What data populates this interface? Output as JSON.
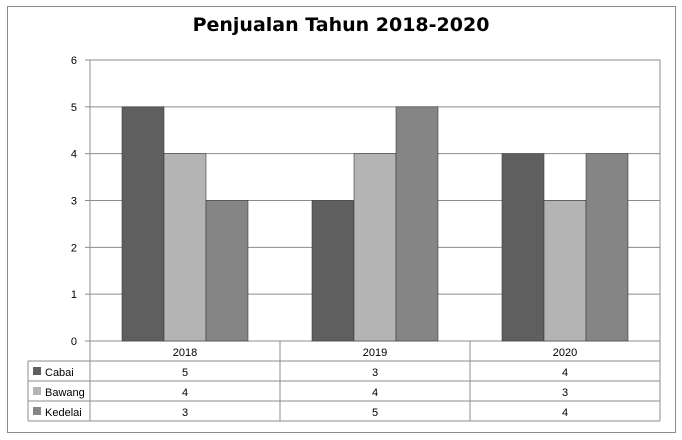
{
  "chart_data": {
    "type": "bar",
    "title": "Penjualan Tahun 2018-2020",
    "categories": [
      "2018",
      "2019",
      "2020"
    ],
    "series": [
      {
        "name": "Cabai",
        "values": [
          5,
          3,
          4
        ],
        "color": "#5f5f5f"
      },
      {
        "name": "Bawang",
        "values": [
          4,
          4,
          3
        ],
        "color": "#b4b4b4"
      },
      {
        "name": "Kedelai",
        "values": [
          3,
          5,
          4
        ],
        "color": "#858585"
      }
    ],
    "ylim": [
      0,
      6
    ],
    "yticks": [
      "0",
      "1",
      "2",
      "3",
      "4",
      "5",
      "6"
    ],
    "grid": true,
    "legend": "data-table"
  }
}
